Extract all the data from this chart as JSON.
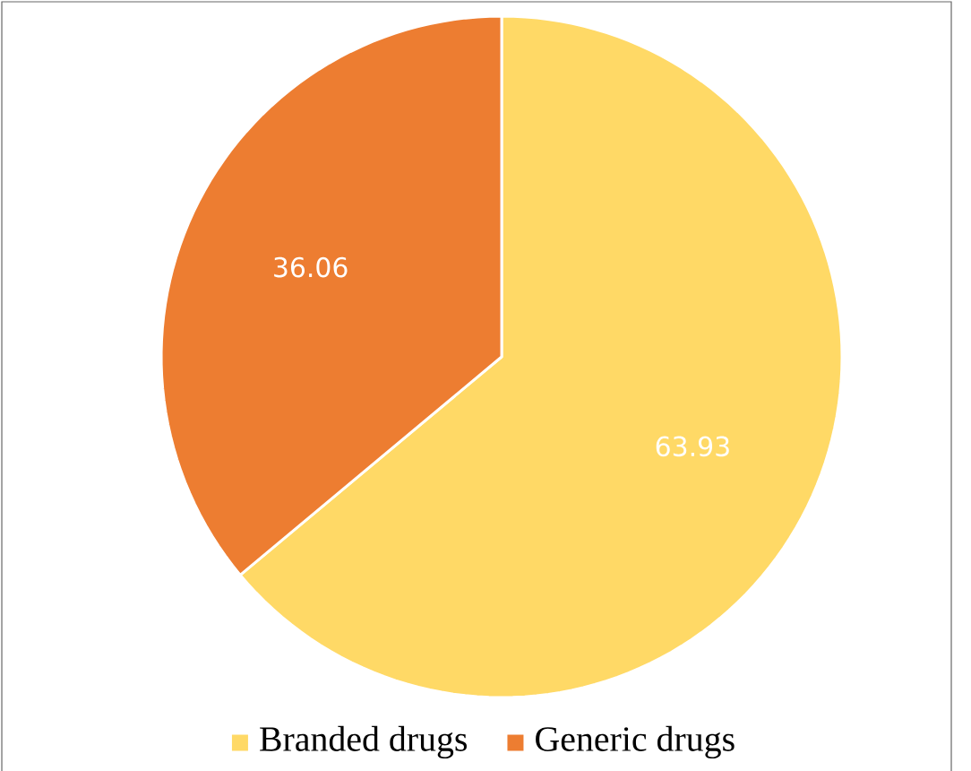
{
  "chart_data": {
    "type": "pie",
    "categories": [
      "Branded drugs",
      "Generic drugs"
    ],
    "values": [
      63.93,
      36.06
    ],
    "colors": [
      "#ffd966",
      "#ed7d31"
    ],
    "data_labels": true,
    "legend": "bottom"
  }
}
